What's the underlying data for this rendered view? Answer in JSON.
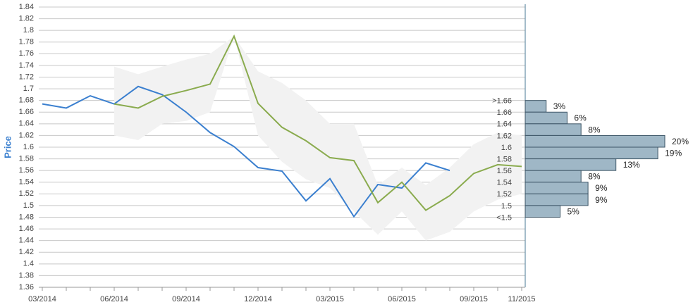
{
  "chart_data": [
    {
      "type": "line",
      "y_label": "Price",
      "x": [
        "03/2014",
        null,
        null,
        "06/2014",
        null,
        null,
        "09/2014",
        null,
        null,
        "12/2014",
        null,
        null,
        "03/2015",
        null,
        null,
        "06/2015",
        null,
        null,
        "09/2015",
        null,
        "11/2015"
      ],
      "ylim": [
        1.36,
        1.84
      ],
      "yticks": [
        1.36,
        1.38,
        1.4,
        1.42,
        1.44,
        1.46,
        1.48,
        1.5,
        1.52,
        1.54,
        1.56,
        1.58,
        1.6,
        1.62,
        1.64,
        1.66,
        1.68,
        1.7,
        1.72,
        1.74,
        1.76,
        1.78,
        1.8,
        1.82,
        1.84
      ],
      "grid": true,
      "band": {
        "color": "#f2f2f2",
        "upper": [
          null,
          null,
          null,
          1.738,
          1.725,
          1.738,
          1.75,
          1.76,
          1.79,
          1.73,
          1.71,
          1.68,
          1.64,
          1.64,
          1.535,
          1.565,
          1.535,
          1.565,
          1.605,
          1.625,
          1.62
        ],
        "lower": [
          null,
          null,
          null,
          1.62,
          1.612,
          1.64,
          1.645,
          1.66,
          1.79,
          1.62,
          1.575,
          1.545,
          1.53,
          1.49,
          1.45,
          1.49,
          1.44,
          1.455,
          1.49,
          1.51,
          1.52
        ]
      },
      "series": [
        {
          "color": "#3a7fcf",
          "values": [
            1.674,
            1.667,
            1.688,
            1.674,
            1.704,
            1.69,
            1.66,
            1.625,
            1.601,
            1.565,
            1.559,
            1.508,
            1.546,
            1.481,
            1.536,
            1.53,
            1.573,
            1.56,
            null,
            null,
            null
          ]
        },
        {
          "color": "#8aab4e",
          "values": [
            null,
            null,
            null,
            1.674,
            1.667,
            1.687,
            1.697,
            1.708,
            1.79,
            1.675,
            1.634,
            1.611,
            1.582,
            1.577,
            1.505,
            1.54,
            1.492,
            1.517,
            1.555,
            1.57,
            1.567
          ]
        }
      ]
    },
    {
      "type": "hbar",
      "color": "#9fb7c6",
      "bin_labels": [
        ">1.66",
        "1.66",
        "1.64",
        "1.62",
        "1.6",
        "1.58",
        "1.56",
        "1.54",
        "1.52",
        "1.5",
        "<1.5"
      ],
      "values": [
        3,
        6,
        8,
        20,
        19,
        13,
        8,
        9,
        9,
        5
      ],
      "value_labels": [
        "3%",
        "6%",
        "8%",
        "20%",
        "19%",
        "13%",
        "8%",
        "9%",
        "9%",
        "5%"
      ]
    }
  ]
}
